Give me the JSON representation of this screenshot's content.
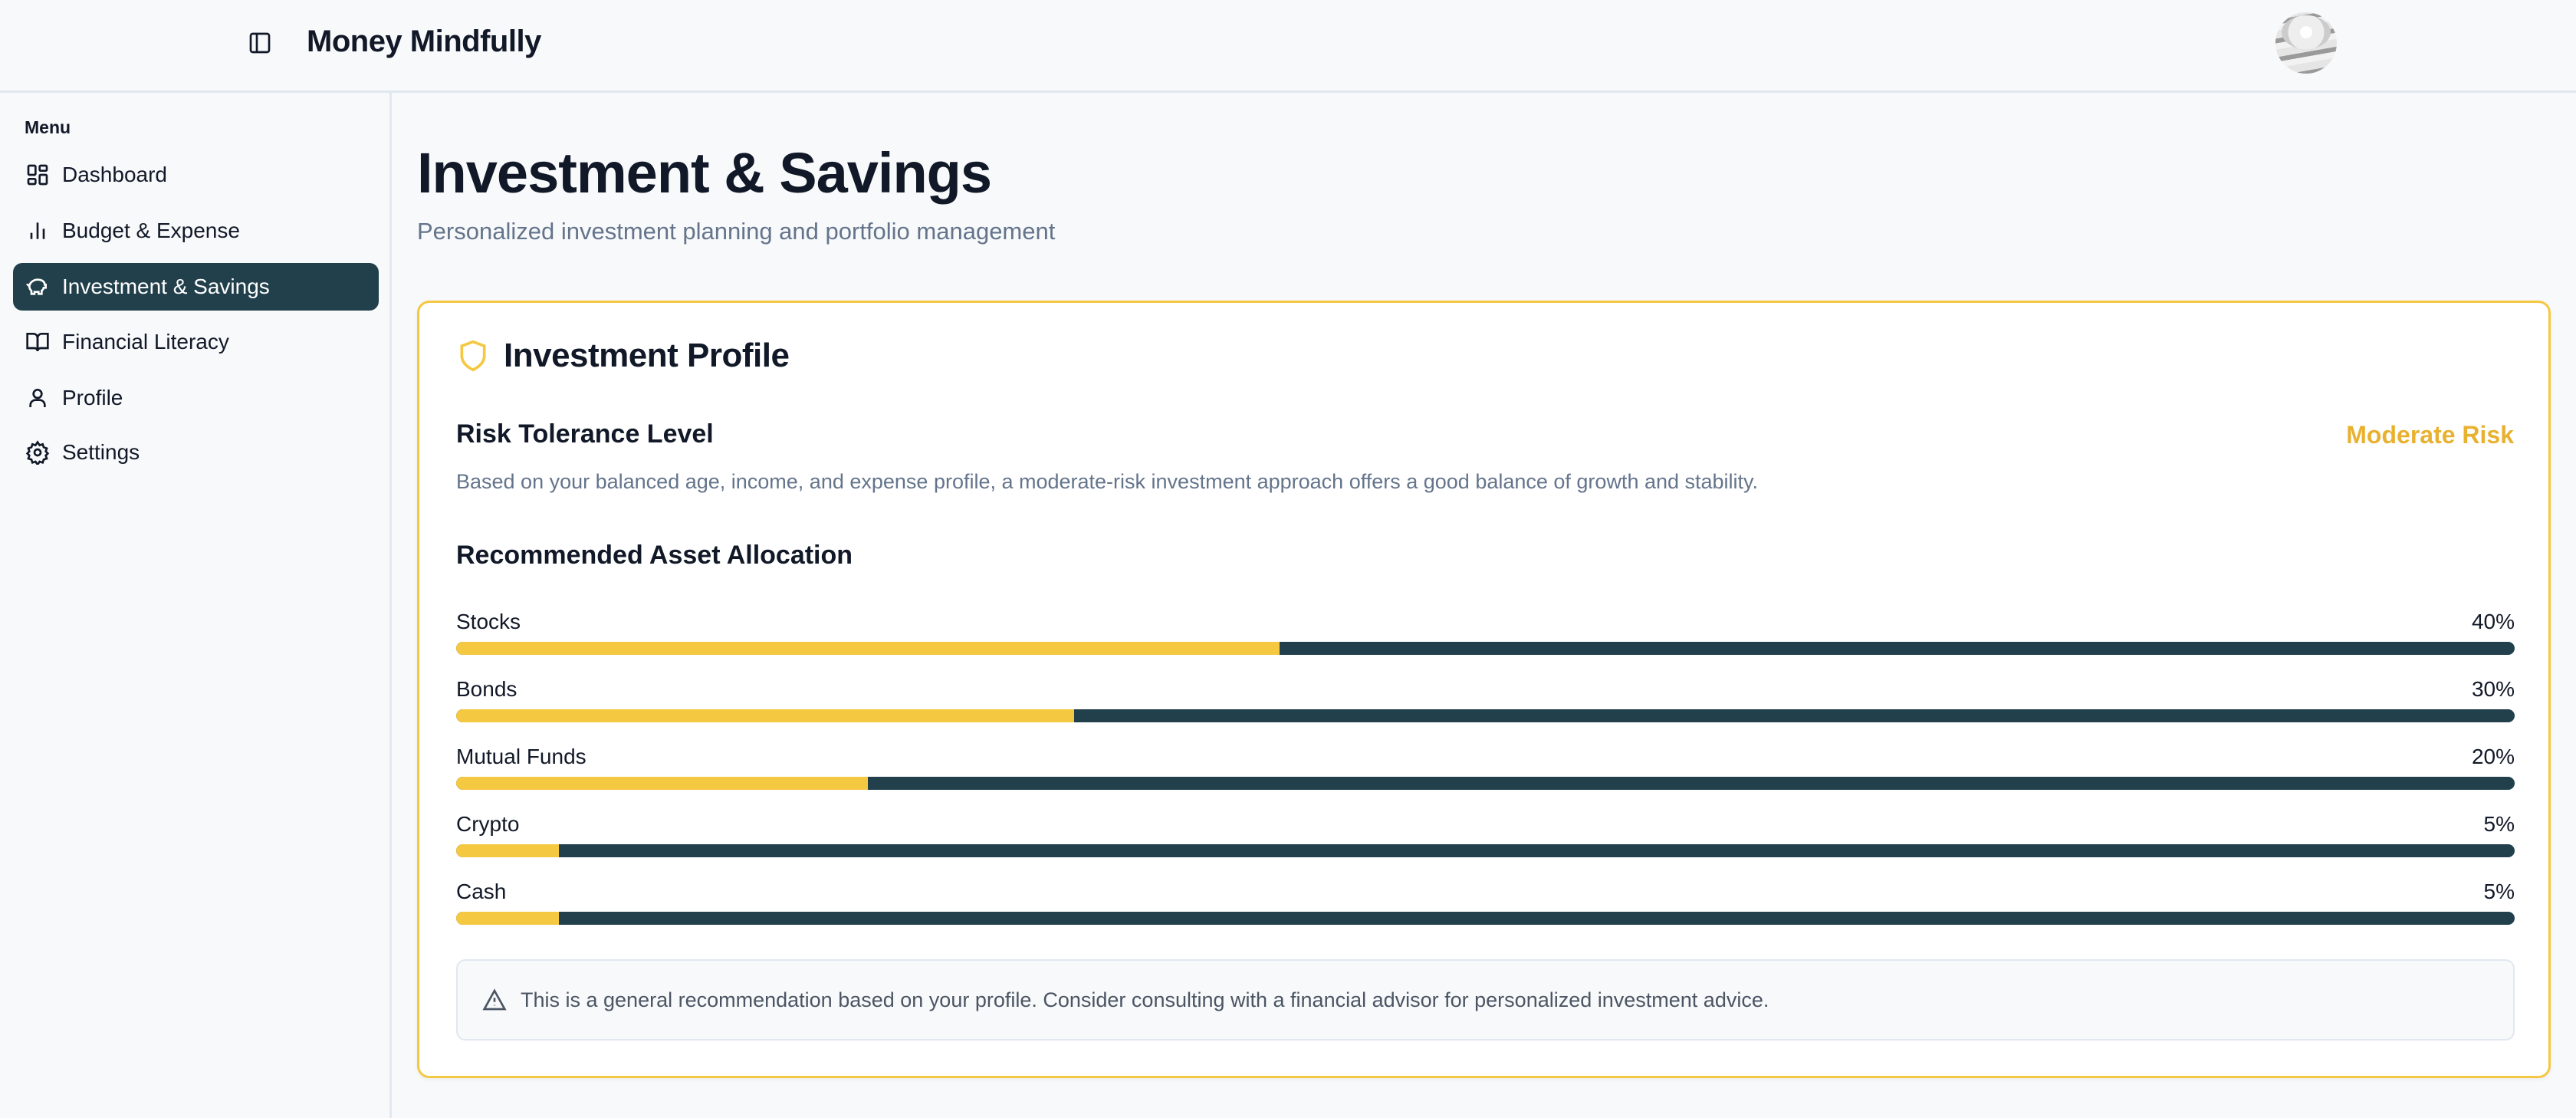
{
  "header": {
    "brand": "Money Mindfully",
    "toggle_icon": "sidebar-toggle-icon",
    "avatar": "user-avatar"
  },
  "sidebar": {
    "menu_label": "Menu",
    "items": [
      {
        "label": "Dashboard",
        "icon": "dashboard-icon",
        "active": false
      },
      {
        "label": "Budget & Expense",
        "icon": "bar-chart-icon",
        "active": false
      },
      {
        "label": "Investment & Savings",
        "icon": "piggy-bank-icon",
        "active": true
      },
      {
        "label": "Financial Literacy",
        "icon": "book-open-icon",
        "active": false
      },
      {
        "label": "Profile",
        "icon": "user-icon",
        "active": false
      },
      {
        "label": "Settings",
        "icon": "gear-icon",
        "active": false
      }
    ]
  },
  "page": {
    "title": "Investment & Savings",
    "subtitle": "Personalized investment planning and portfolio management"
  },
  "profile": {
    "title": "Investment Profile",
    "risk_heading": "Risk Tolerance Level",
    "risk_value": "Moderate Risk",
    "risk_description": "Based on your balanced age, income, and expense profile, a moderate-risk investment approach offers a good balance of growth and stability.",
    "allocation_heading": "Recommended Asset Allocation",
    "allocation": [
      {
        "label": "Stocks",
        "percent_label": "40%",
        "value": 40
      },
      {
        "label": "Bonds",
        "percent_label": "30%",
        "value": 30
      },
      {
        "label": "Mutual Funds",
        "percent_label": "20%",
        "value": 20
      },
      {
        "label": "Crypto",
        "percent_label": "5%",
        "value": 5
      },
      {
        "label": "Cash",
        "percent_label": "5%",
        "value": 5
      }
    ],
    "note": "This is a general recommendation based on your profile. Consider consulting with a financial advisor for personalized investment advice."
  },
  "colors": {
    "primary": "#21404b",
    "accent": "#f5c842",
    "risk": "#e8b130",
    "background": "#f8f9fb"
  }
}
